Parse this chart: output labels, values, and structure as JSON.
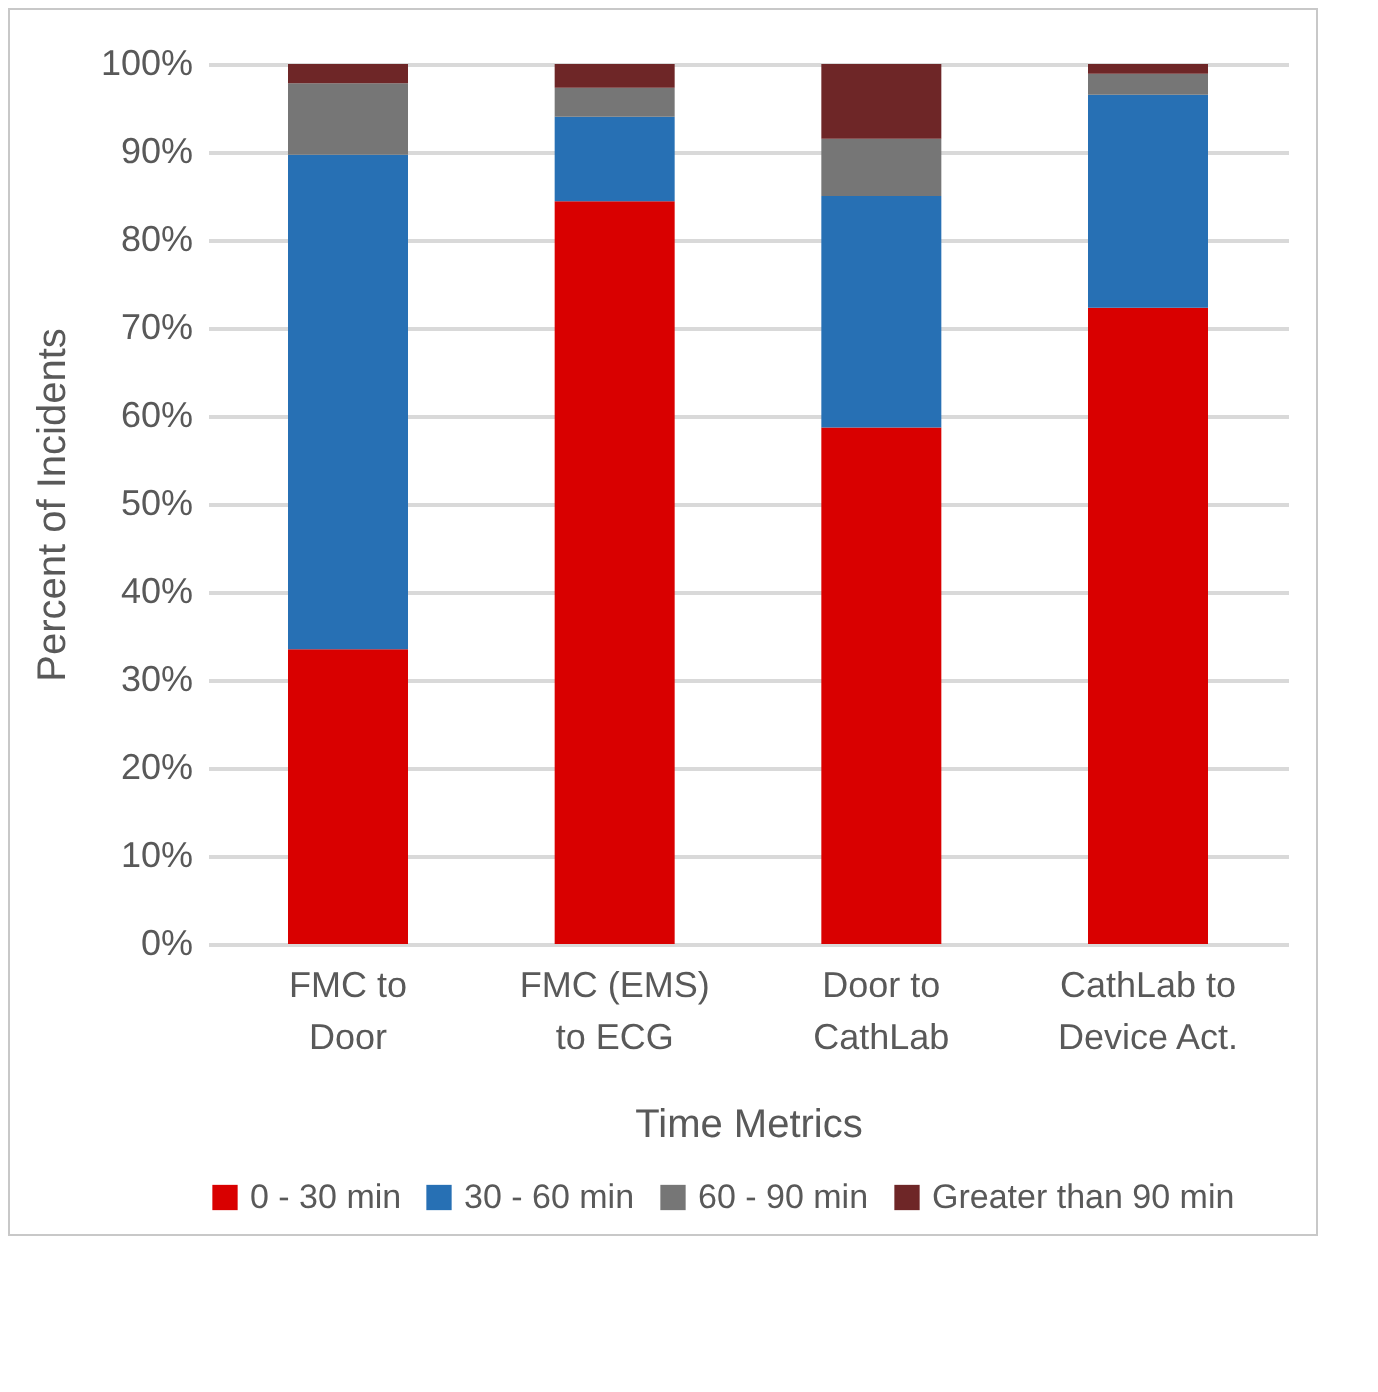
{
  "chart_data": {
    "type": "bar",
    "stacked": true,
    "xlabel": "Time Metrics",
    "ylabel": "Percent of Incidents",
    "categories": [
      "FMC to\nDoor",
      "FMC (EMS)\nto ECG",
      "Door to\nCathLab",
      "CathLab to\nDevice Act."
    ],
    "series": [
      {
        "name": "0 - 30 min",
        "color": "#d90000",
        "values": [
          33.5,
          84.4,
          58.7,
          72.3
        ]
      },
      {
        "name": "30 - 60 min",
        "color": "#2770b4",
        "values": [
          56.2,
          9.6,
          26.3,
          24.2
        ]
      },
      {
        "name": "60 - 90 min",
        "color": "#767676",
        "values": [
          8.1,
          3.3,
          6.5,
          2.4
        ]
      },
      {
        "name": "Greater than 90 min",
        "color": "#6e2627",
        "values": [
          2.2,
          2.7,
          8.5,
          1.1
        ]
      }
    ],
    "ylim": [
      0,
      100
    ],
    "yticks": [
      {
        "value": 0,
        "label": "0%"
      },
      {
        "value": 10,
        "label": "10%"
      },
      {
        "value": 20,
        "label": "20%"
      },
      {
        "value": 30,
        "label": "30%"
      },
      {
        "value": 40,
        "label": "40%"
      },
      {
        "value": 50,
        "label": "50%"
      },
      {
        "value": 60,
        "label": "60%"
      },
      {
        "value": 70,
        "label": "70%"
      },
      {
        "value": 80,
        "label": "80%"
      },
      {
        "value": 90,
        "label": "90%"
      },
      {
        "value": 100,
        "label": "100%"
      }
    ],
    "grid": "y",
    "legend": "bottom"
  }
}
